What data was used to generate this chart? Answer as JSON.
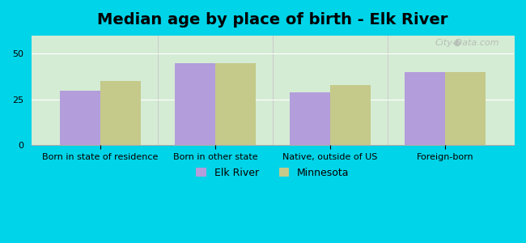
{
  "title": "Median age by place of birth - Elk River",
  "categories": [
    "Born in state of residence",
    "Born in other state",
    "Native, outside of US",
    "Foreign-born"
  ],
  "elk_river": [
    30,
    45,
    29,
    40
  ],
  "minnesota": [
    35,
    45,
    33,
    40
  ],
  "elk_river_color": "#b39ddb",
  "minnesota_color": "#c5c98a",
  "background_outer": "#00d4e8",
  "background_inner_top": "#f0f4f0",
  "background_inner_bottom": "#d4ecd4",
  "ylim": [
    0,
    60
  ],
  "yticks": [
    0,
    25,
    50
  ],
  "bar_width": 0.35,
  "legend_labels": [
    "Elk River",
    "Minnesota"
  ],
  "watermark": "City-Data.com",
  "title_fontsize": 14,
  "tick_fontsize": 8,
  "legend_fontsize": 9
}
